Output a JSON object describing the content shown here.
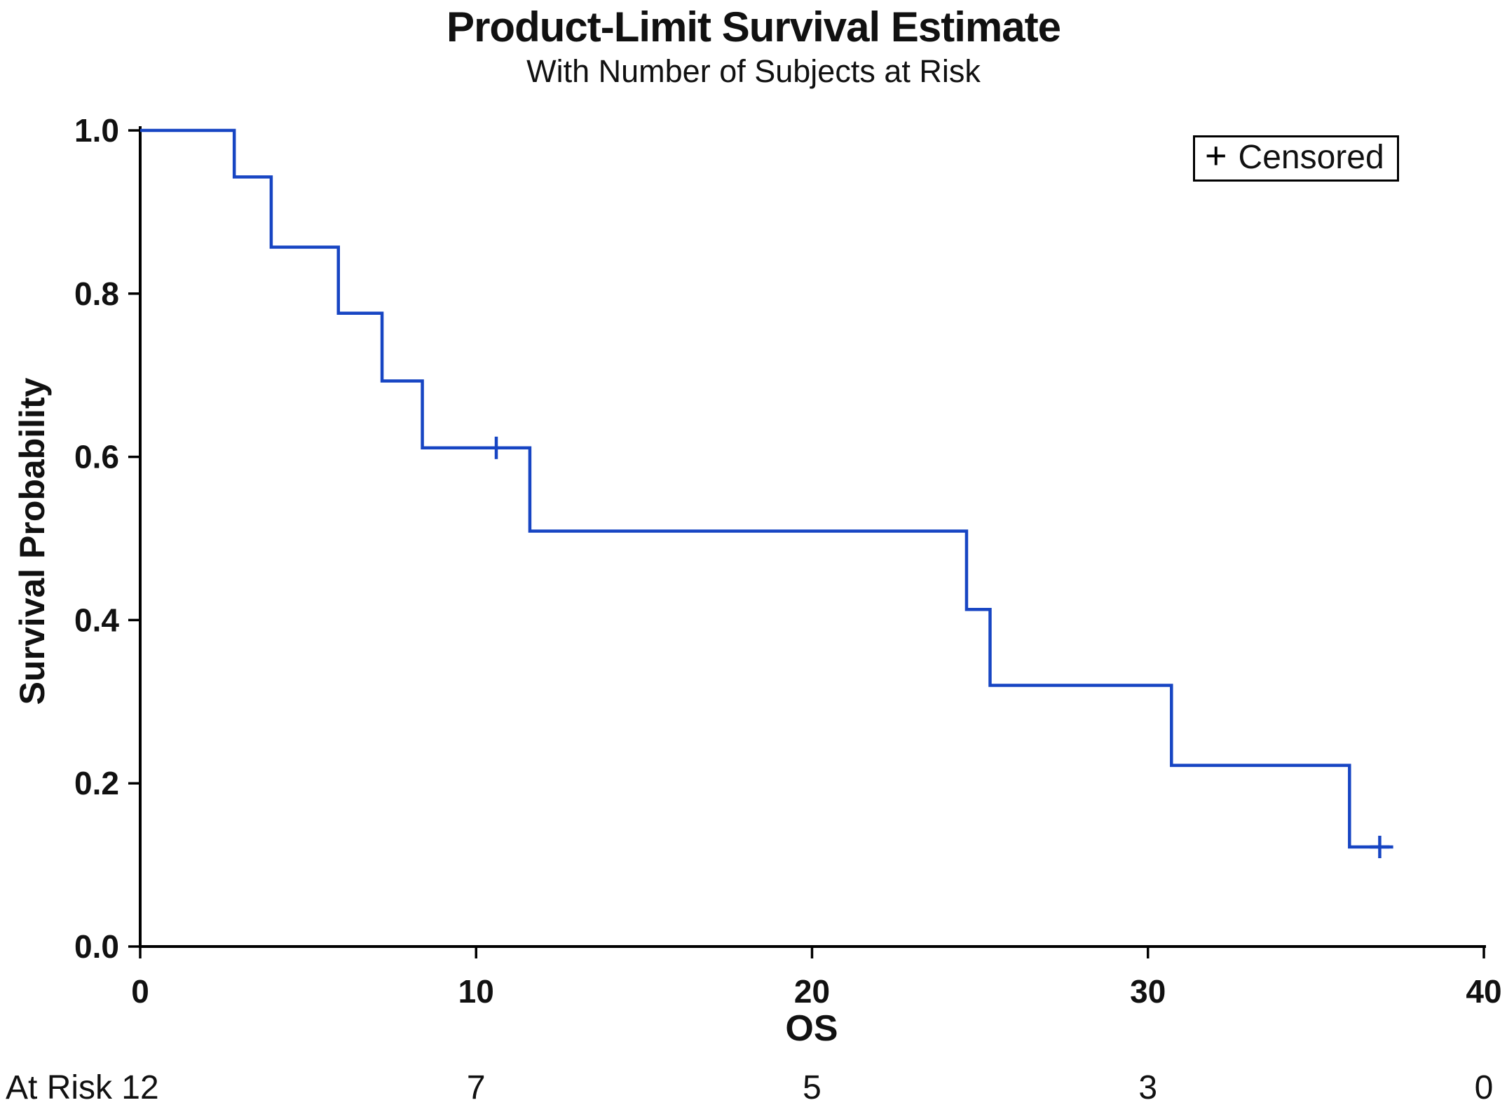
{
  "chart_data": {
    "type": "line",
    "subtype": "kaplan-meier-step",
    "title": "Product-Limit Survival Estimate",
    "subtitle": "With Number of Subjects at Risk",
    "xlabel": "OS",
    "ylabel": "Survival Probability",
    "xlim": [
      0,
      40
    ],
    "ylim": [
      0,
      1
    ],
    "xticks": [
      0,
      10,
      20,
      30,
      40
    ],
    "yticks": [
      0.0,
      0.2,
      0.4,
      0.6,
      0.8,
      1.0
    ],
    "grid": false,
    "line_color": "#1745c3",
    "axis_color": "#000000",
    "legend": {
      "marker": "+",
      "label": "Censored",
      "position": "top-right"
    },
    "steps": [
      {
        "t": 0,
        "s": 1.0
      },
      {
        "t": 2.8,
        "s": 0.943
      },
      {
        "t": 3.9,
        "s": 0.857
      },
      {
        "t": 5.9,
        "s": 0.776
      },
      {
        "t": 7.2,
        "s": 0.693
      },
      {
        "t": 8.4,
        "s": 0.611
      },
      {
        "t": 11.6,
        "s": 0.509
      },
      {
        "t": 24.6,
        "s": 0.413
      },
      {
        "t": 25.3,
        "s": 0.32
      },
      {
        "t": 30.7,
        "s": 0.222
      },
      {
        "t": 36.0,
        "s": 0.122
      }
    ],
    "curve_end_t": 37.3,
    "censored": [
      {
        "t": 10.6,
        "s": 0.611
      },
      {
        "t": 36.9,
        "s": 0.122
      }
    ],
    "at_risk": {
      "label": "At Risk",
      "times": [
        0,
        10,
        20,
        30,
        40
      ],
      "counts": [
        12,
        7,
        5,
        3,
        0
      ]
    }
  }
}
